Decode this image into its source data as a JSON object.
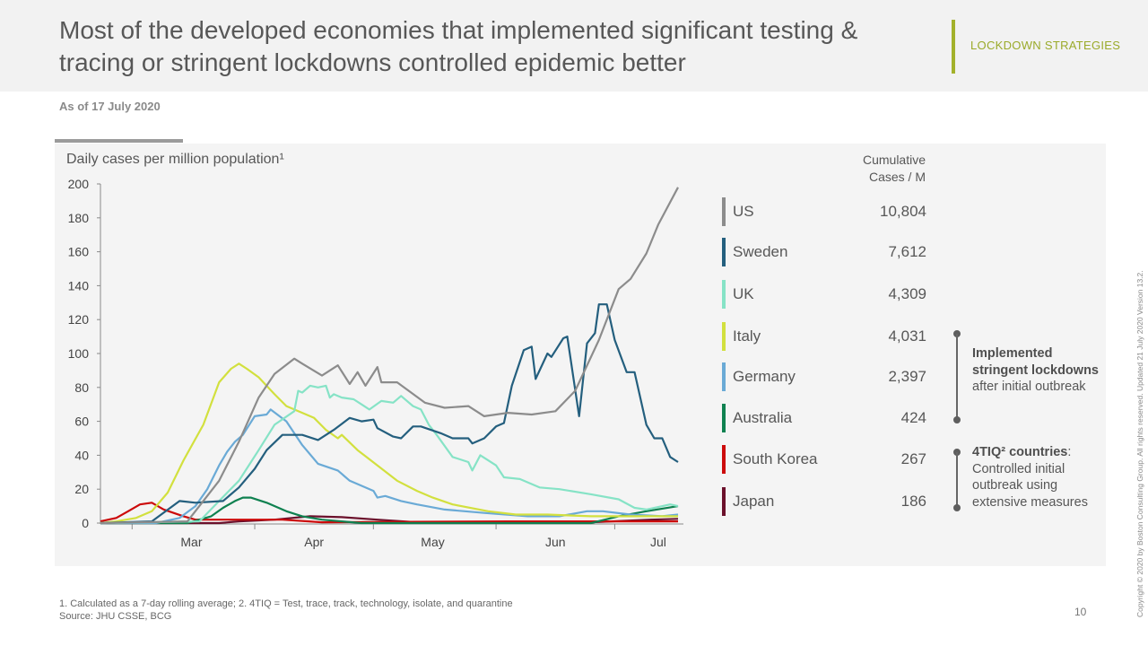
{
  "header": {
    "title": "Most of the developed economies that implemented significant testing & tracing or stringent lockdowns controlled epidemic better",
    "tag": "LOCKDOWN STRATEGIES",
    "as_of": "As of 17 July 2020"
  },
  "colors": {
    "accent": "#9aaa2a",
    "panel": "#f4f4f4"
  },
  "chart_data": {
    "type": "line",
    "title": "Daily cases per million population¹",
    "xlabel": "",
    "ylabel": "Daily cases per million population",
    "xlim": [
      "2020-02-22",
      "2020-07-17"
    ],
    "ylim": [
      0,
      200
    ],
    "yticks": [
      0,
      20,
      40,
      60,
      80,
      100,
      120,
      140,
      160,
      180,
      200
    ],
    "xtick_labels": [
      "Mar",
      "Apr",
      "May",
      "Jun",
      "Jul"
    ],
    "grid": false,
    "legend": "right",
    "series": [
      {
        "name": "US",
        "color": "#8c8c8c",
        "points": [
          [
            "2020-02-22",
            0
          ],
          [
            "2020-03-15",
            1
          ],
          [
            "2020-03-23",
            25
          ],
          [
            "2020-03-28",
            48
          ],
          [
            "2020-04-02",
            74
          ],
          [
            "2020-04-06",
            88
          ],
          [
            "2020-04-11",
            97
          ],
          [
            "2020-04-13",
            94
          ],
          [
            "2020-04-18",
            87
          ],
          [
            "2020-04-22",
            93
          ],
          [
            "2020-04-25",
            82
          ],
          [
            "2020-04-27",
            89
          ],
          [
            "2020-04-29",
            81
          ],
          [
            "2020-05-02",
            92
          ],
          [
            "2020-05-03",
            83
          ],
          [
            "2020-05-07",
            83
          ],
          [
            "2020-05-14",
            71
          ],
          [
            "2020-05-19",
            68
          ],
          [
            "2020-05-25",
            69
          ],
          [
            "2020-05-29",
            63
          ],
          [
            "2020-06-04",
            65
          ],
          [
            "2020-06-10",
            64
          ],
          [
            "2020-06-16",
            66
          ],
          [
            "2020-06-21",
            78
          ],
          [
            "2020-06-27",
            108
          ],
          [
            "2020-07-02",
            138
          ],
          [
            "2020-07-05",
            144
          ],
          [
            "2020-07-09",
            159
          ],
          [
            "2020-07-12",
            176
          ],
          [
            "2020-07-17",
            198
          ]
        ]
      },
      {
        "name": "Sweden",
        "color": "#245f7e",
        "points": [
          [
            "2020-02-22",
            0
          ],
          [
            "2020-03-06",
            1
          ],
          [
            "2020-03-13",
            13
          ],
          [
            "2020-03-17",
            12
          ],
          [
            "2020-03-24",
            13
          ],
          [
            "2020-03-28",
            21
          ],
          [
            "2020-04-01",
            32
          ],
          [
            "2020-04-04",
            43
          ],
          [
            "2020-04-08",
            52
          ],
          [
            "2020-04-13",
            52
          ],
          [
            "2020-04-17",
            49
          ],
          [
            "2020-04-21",
            55
          ],
          [
            "2020-04-25",
            62
          ],
          [
            "2020-04-28",
            60
          ],
          [
            "2020-05-01",
            61
          ],
          [
            "2020-05-02",
            56
          ],
          [
            "2020-05-06",
            51
          ],
          [
            "2020-05-08",
            50
          ],
          [
            "2020-05-11",
            57
          ],
          [
            "2020-05-13",
            57
          ],
          [
            "2020-05-18",
            53
          ],
          [
            "2020-05-21",
            50
          ],
          [
            "2020-05-25",
            50
          ],
          [
            "2020-05-26",
            47
          ],
          [
            "2020-05-29",
            50
          ],
          [
            "2020-06-01",
            57
          ],
          [
            "2020-06-03",
            59
          ],
          [
            "2020-06-05",
            81
          ],
          [
            "2020-06-08",
            102
          ],
          [
            "2020-06-10",
            104
          ],
          [
            "2020-06-11",
            85
          ],
          [
            "2020-06-14",
            100
          ],
          [
            "2020-06-15",
            98
          ],
          [
            "2020-06-18",
            109
          ],
          [
            "2020-06-19",
            110
          ],
          [
            "2020-06-22",
            63
          ],
          [
            "2020-06-24",
            106
          ],
          [
            "2020-06-26",
            112
          ],
          [
            "2020-06-27",
            129
          ],
          [
            "2020-06-29",
            129
          ],
          [
            "2020-07-01",
            108
          ],
          [
            "2020-07-04",
            89
          ],
          [
            "2020-07-06",
            89
          ],
          [
            "2020-07-09",
            58
          ],
          [
            "2020-07-11",
            50
          ],
          [
            "2020-07-13",
            50
          ],
          [
            "2020-07-15",
            39
          ],
          [
            "2020-07-17",
            36
          ]
        ]
      },
      {
        "name": "UK",
        "color": "#86e3c6",
        "points": [
          [
            "2020-02-22",
            0
          ],
          [
            "2020-03-18",
            1
          ],
          [
            "2020-03-23",
            13
          ],
          [
            "2020-03-28",
            25
          ],
          [
            "2020-04-02",
            43
          ],
          [
            "2020-04-06",
            58
          ],
          [
            "2020-04-11",
            66
          ],
          [
            "2020-04-12",
            78
          ],
          [
            "2020-04-13",
            77
          ],
          [
            "2020-04-15",
            81
          ],
          [
            "2020-04-17",
            80
          ],
          [
            "2020-04-19",
            81
          ],
          [
            "2020-04-20",
            74
          ],
          [
            "2020-04-21",
            76
          ],
          [
            "2020-04-23",
            74
          ],
          [
            "2020-04-26",
            73
          ],
          [
            "2020-04-28",
            70
          ],
          [
            "2020-04-30",
            67
          ],
          [
            "2020-05-03",
            72
          ],
          [
            "2020-05-06",
            71
          ],
          [
            "2020-05-08",
            75
          ],
          [
            "2020-05-11",
            69
          ],
          [
            "2020-05-13",
            67
          ],
          [
            "2020-05-15",
            58
          ],
          [
            "2020-05-17",
            52
          ],
          [
            "2020-05-21",
            39
          ],
          [
            "2020-05-25",
            36
          ],
          [
            "2020-05-26",
            31
          ],
          [
            "2020-05-28",
            40
          ],
          [
            "2020-06-01",
            34
          ],
          [
            "2020-06-03",
            27
          ],
          [
            "2020-06-07",
            26
          ],
          [
            "2020-06-12",
            21
          ],
          [
            "2020-06-17",
            20
          ],
          [
            "2020-06-25",
            17
          ],
          [
            "2020-07-02",
            14
          ],
          [
            "2020-07-06",
            9
          ],
          [
            "2020-07-09",
            8
          ],
          [
            "2020-07-15",
            11
          ],
          [
            "2020-07-17",
            10
          ]
        ]
      },
      {
        "name": "Italy",
        "color": "#d2e03e",
        "points": [
          [
            "2020-02-22",
            0
          ],
          [
            "2020-02-26",
            1
          ],
          [
            "2020-03-02",
            3
          ],
          [
            "2020-03-06",
            7
          ],
          [
            "2020-03-10",
            18
          ],
          [
            "2020-03-14",
            37
          ],
          [
            "2020-03-19",
            58
          ],
          [
            "2020-03-23",
            83
          ],
          [
            "2020-03-26",
            91
          ],
          [
            "2020-03-28",
            94
          ],
          [
            "2020-03-30",
            91
          ],
          [
            "2020-04-02",
            86
          ],
          [
            "2020-04-06",
            76
          ],
          [
            "2020-04-09",
            69
          ],
          [
            "2020-04-13",
            65
          ],
          [
            "2020-04-16",
            62
          ],
          [
            "2020-04-19",
            55
          ],
          [
            "2020-04-22",
            50
          ],
          [
            "2020-04-23",
            52
          ],
          [
            "2020-04-27",
            43
          ],
          [
            "2020-05-02",
            34
          ],
          [
            "2020-05-07",
            25
          ],
          [
            "2020-05-12",
            19
          ],
          [
            "2020-05-16",
            15
          ],
          [
            "2020-05-21",
            11
          ],
          [
            "2020-05-30",
            7
          ],
          [
            "2020-06-06",
            5
          ],
          [
            "2020-06-14",
            5
          ],
          [
            "2020-06-25",
            4
          ],
          [
            "2020-07-05",
            4
          ],
          [
            "2020-07-17",
            4
          ]
        ]
      },
      {
        "name": "Germany",
        "color": "#6aaad6",
        "points": [
          [
            "2020-02-22",
            0
          ],
          [
            "2020-03-07",
            0
          ],
          [
            "2020-03-13",
            3
          ],
          [
            "2020-03-17",
            10
          ],
          [
            "2020-03-20",
            20
          ],
          [
            "2020-03-23",
            34
          ],
          [
            "2020-03-25",
            42
          ],
          [
            "2020-03-27",
            48
          ],
          [
            "2020-03-29",
            52
          ],
          [
            "2020-04-01",
            63
          ],
          [
            "2020-04-04",
            64
          ],
          [
            "2020-04-05",
            67
          ],
          [
            "2020-04-09",
            60
          ],
          [
            "2020-04-13",
            46
          ],
          [
            "2020-04-17",
            35
          ],
          [
            "2020-04-22",
            31
          ],
          [
            "2020-04-25",
            25
          ],
          [
            "2020-05-01",
            19
          ],
          [
            "2020-05-02",
            15
          ],
          [
            "2020-05-04",
            16
          ],
          [
            "2020-05-08",
            13
          ],
          [
            "2020-05-12",
            11
          ],
          [
            "2020-05-19",
            8
          ],
          [
            "2020-05-29",
            6
          ],
          [
            "2020-06-09",
            4
          ],
          [
            "2020-06-17",
            4
          ],
          [
            "2020-06-24",
            7
          ],
          [
            "2020-06-28",
            7
          ],
          [
            "2020-07-05",
            5
          ],
          [
            "2020-07-13",
            4
          ],
          [
            "2020-07-17",
            5
          ]
        ]
      },
      {
        "name": "Australia",
        "color": "#0f8150",
        "points": [
          [
            "2020-02-22",
            0
          ],
          [
            "2020-03-15",
            0
          ],
          [
            "2020-03-21",
            4
          ],
          [
            "2020-03-24",
            9
          ],
          [
            "2020-03-27",
            13
          ],
          [
            "2020-03-29",
            15
          ],
          [
            "2020-03-31",
            15
          ],
          [
            "2020-04-04",
            12
          ],
          [
            "2020-04-09",
            7
          ],
          [
            "2020-04-13",
            4
          ],
          [
            "2020-04-18",
            2
          ],
          [
            "2020-04-28",
            0
          ],
          [
            "2020-06-25",
            0
          ],
          [
            "2020-07-02",
            4
          ],
          [
            "2020-07-09",
            7
          ],
          [
            "2020-07-17",
            10
          ]
        ]
      },
      {
        "name": "South Korea",
        "color": "#cc0a0a",
        "points": [
          [
            "2020-02-22",
            1
          ],
          [
            "2020-02-26",
            3
          ],
          [
            "2020-02-29",
            7
          ],
          [
            "2020-03-03",
            11
          ],
          [
            "2020-03-06",
            12
          ],
          [
            "2020-03-09",
            8
          ],
          [
            "2020-03-14",
            4
          ],
          [
            "2020-03-17",
            2
          ],
          [
            "2020-03-28",
            2
          ],
          [
            "2020-04-08",
            2
          ],
          [
            "2020-04-18",
            0.5
          ],
          [
            "2020-06-04",
            1
          ],
          [
            "2020-07-17",
            1
          ]
        ]
      },
      {
        "name": "Japan",
        "color": "#6b102b",
        "points": [
          [
            "2020-02-22",
            0
          ],
          [
            "2020-03-23",
            0
          ],
          [
            "2020-03-28",
            1
          ],
          [
            "2020-04-06",
            2
          ],
          [
            "2020-04-15",
            4
          ],
          [
            "2020-04-23",
            3.5
          ],
          [
            "2020-05-02",
            2
          ],
          [
            "2020-05-12",
            0.5
          ],
          [
            "2020-06-25",
            0.5
          ],
          [
            "2020-07-10",
            2
          ],
          [
            "2020-07-17",
            2.5
          ]
        ]
      }
    ]
  },
  "legend": {
    "header": [
      "Cumulative",
      "Cases / M"
    ],
    "items": [
      {
        "name": "US",
        "value": "10,804",
        "color": "#8c8c8c"
      },
      {
        "name": "Sweden",
        "value": "7,612",
        "color": "#245f7e"
      },
      {
        "name": "UK",
        "value": "4,309",
        "color": "#86e3c6"
      },
      {
        "name": "Italy",
        "value": "4,031",
        "color": "#d2e03e"
      },
      {
        "name": "Germany",
        "value": "2,397",
        "color": "#6aaad6"
      },
      {
        "name": "Australia",
        "value": "424",
        "color": "#0f8150"
      },
      {
        "name": "South Korea",
        "value": "267",
        "color": "#cc0a0a"
      },
      {
        "name": "Japan",
        "value": "186",
        "color": "#6b102b"
      }
    ]
  },
  "annotations": {
    "lockdown": {
      "bold": "Implemented stringent lockdowns",
      "rest": " after initial outbreak"
    },
    "tiq": {
      "bold": "4TIQ² countries",
      "rest": ": Controlled initial outbreak using extensive measures"
    }
  },
  "footer": {
    "note": "1. Calculated as a 7-day rolling average;  2. 4TIQ = Test, trace, track, technology, isolate, and quarantine",
    "source": "Source: JHU CSSE, BCG",
    "page": "10",
    "copyright": "Copyright © 2020 by Boston Consulting Group. All rights reserved. Updated 21 July 2020 Version 13.2."
  }
}
